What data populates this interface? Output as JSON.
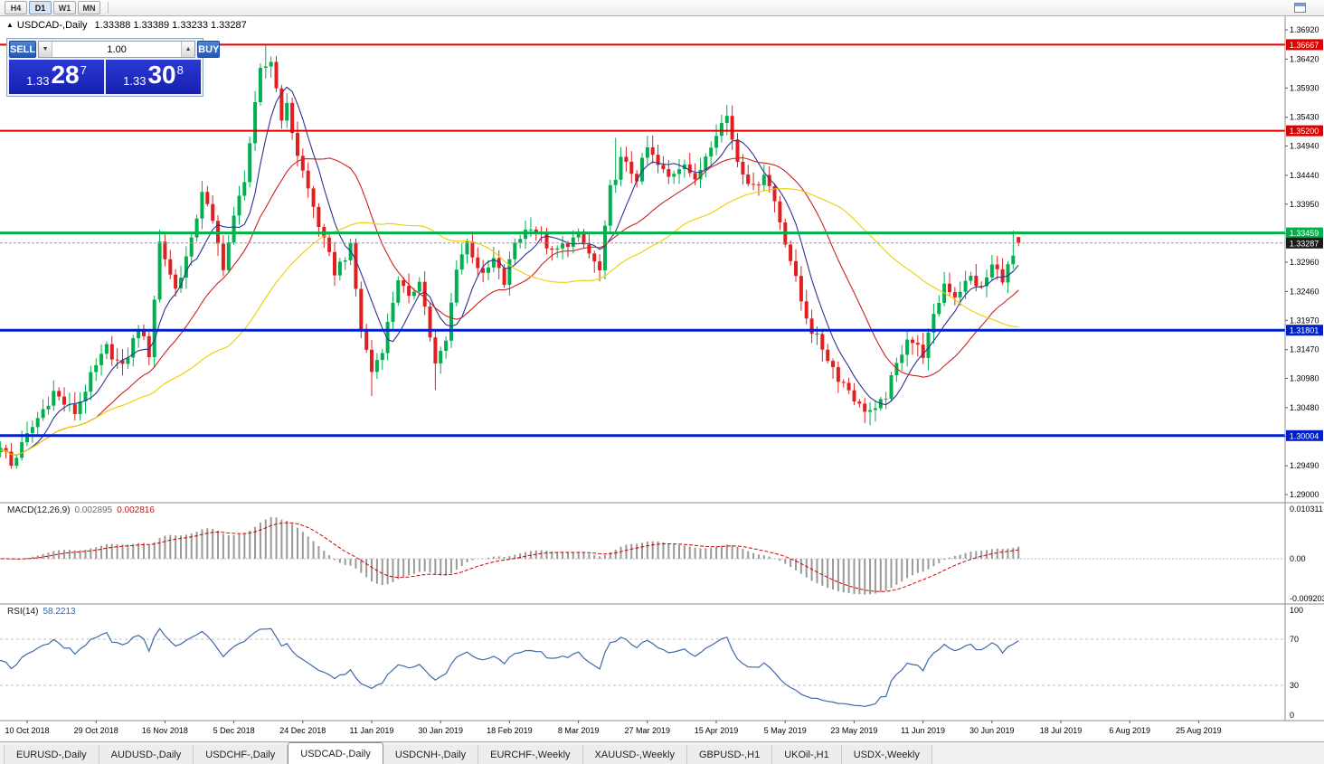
{
  "toolbar": {
    "timeframes": [
      {
        "label": "H4",
        "active": false
      },
      {
        "label": "D1",
        "active": true
      },
      {
        "label": "W1",
        "active": false
      },
      {
        "label": "MN",
        "active": false
      }
    ]
  },
  "chart": {
    "marker": "▲",
    "symbol_label": "USDCAD-,Daily",
    "ohlc": "1.33388 1.33389 1.33233 1.33287"
  },
  "trade_panel": {
    "sell_label": "SELL",
    "buy_label": "BUY",
    "volume": "1.00",
    "spin_up": "▲",
    "spin_down": "▼",
    "sell_price": {
      "prefix": "1.33",
      "big": "28",
      "sup": "7"
    },
    "buy_price": {
      "prefix": "1.33",
      "big": "30",
      "sup": "8"
    }
  },
  "chart_data": {
    "type": "candlestick",
    "symbol": "USDCAD",
    "timeframe": "Daily",
    "bars": 194,
    "current_bar": {
      "open": "1.33388",
      "high": "1.33389",
      "low": "1.33233",
      "close": "1.33287"
    },
    "up_color": "#00b050",
    "down_color": "#e02020",
    "price_anchors": [
      [
        0,
        1.2978
      ],
      [
        2,
        1.2972
      ],
      [
        3,
        1.295
      ],
      [
        6,
        1.3
      ],
      [
        9,
        1.3045
      ],
      [
        11,
        1.3075
      ],
      [
        13,
        1.3055
      ],
      [
        15,
        1.304
      ],
      [
        18,
        1.31
      ],
      [
        21,
        1.315
      ],
      [
        24,
        1.3115
      ],
      [
        27,
        1.3185
      ],
      [
        29,
        1.314
      ],
      [
        31,
        1.333
      ],
      [
        34,
        1.325
      ],
      [
        37,
        1.333
      ],
      [
        39,
        1.342
      ],
      [
        41,
        1.336
      ],
      [
        43,
        1.329
      ],
      [
        45,
        1.337
      ],
      [
        47,
        1.344
      ],
      [
        50,
        1.362
      ],
      [
        52,
        1.364
      ],
      [
        54,
        1.3545
      ],
      [
        55,
        1.356
      ],
      [
        57,
        1.348
      ],
      [
        59,
        1.342
      ],
      [
        62,
        1.333
      ],
      [
        64,
        1.328
      ],
      [
        67,
        1.332
      ],
      [
        69,
        1.318
      ],
      [
        71,
        1.311
      ],
      [
        73,
        1.315
      ],
      [
        76,
        1.327
      ],
      [
        78,
        1.323
      ],
      [
        80,
        1.327
      ],
      [
        83,
        1.312
      ],
      [
        85,
        1.316
      ],
      [
        87,
        1.329
      ],
      [
        89,
        1.333
      ],
      [
        92,
        1.327
      ],
      [
        94,
        1.33
      ],
      [
        96,
        1.326
      ],
      [
        98,
        1.333
      ],
      [
        101,
        1.336
      ],
      [
        103,
        1.334
      ],
      [
        105,
        1.331
      ],
      [
        108,
        1.333
      ],
      [
        110,
        1.334
      ],
      [
        112,
        1.331
      ],
      [
        114,
        1.328
      ],
      [
        116,
        1.342
      ],
      [
        118,
        1.347
      ],
      [
        121,
        1.344
      ],
      [
        123,
        1.349
      ],
      [
        125,
        1.346
      ],
      [
        127,
        1.344
      ],
      [
        130,
        1.347
      ],
      [
        132,
        1.343
      ],
      [
        134,
        1.348
      ],
      [
        136,
        1.352
      ],
      [
        138,
        1.3545
      ],
      [
        140,
        1.347
      ],
      [
        143,
        1.342
      ],
      [
        145,
        1.345
      ],
      [
        147,
        1.34
      ],
      [
        150,
        1.33
      ],
      [
        152,
        1.323
      ],
      [
        154,
        1.318
      ],
      [
        156,
        1.315
      ],
      [
        159,
        1.31
      ],
      [
        161,
        1.308
      ],
      [
        163,
        1.305
      ],
      [
        166,
        1.304
      ],
      [
        168,
        1.307
      ],
      [
        170,
        1.312
      ],
      [
        172,
        1.317
      ],
      [
        175,
        1.314
      ],
      [
        177,
        1.32
      ],
      [
        179,
        1.326
      ],
      [
        181,
        1.324
      ],
      [
        184,
        1.327
      ],
      [
        186,
        1.325
      ],
      [
        188,
        1.329
      ],
      [
        190,
        1.327
      ],
      [
        192,
        1.3305
      ],
      [
        193,
        1.3329
      ]
    ],
    "open_overrides": {
      "193": 1.33388
    },
    "close_overrides": {
      "193": 1.33287
    },
    "high_overrides": {
      "51": 1.3666,
      "117": 1.3508,
      "138": 1.3564,
      "192": 1.335,
      "193": 1.33389
    },
    "low_overrides": {
      "71": 1.3068,
      "83": 1.3078,
      "165": 1.3018,
      "193": 1.33233
    },
    "levels": [
      {
        "price": 1.36667,
        "label": "1.36667",
        "color": "#e00000",
        "width": 2
      },
      {
        "price": 1.352,
        "label": "1.35200",
        "color": "#e00000",
        "width": 2
      },
      {
        "price": 1.33459,
        "label": "1.33459",
        "color": "#00b14a",
        "width": 3
      },
      {
        "price": 1.31801,
        "label": "1.31801",
        "color": "#0020cc",
        "width": 3
      },
      {
        "price": 1.30004,
        "label": "1.30004",
        "color": "#0020cc",
        "width": 3
      }
    ],
    "current_price": {
      "value": 1.33287,
      "label": "1.33287",
      "bg": "#1a1a1a"
    },
    "price_ticks": [
      "1.36920",
      "1.36420",
      "1.35930",
      "1.35430",
      "1.34940",
      "1.34440",
      "1.33950",
      "1.33450",
      "1.32960",
      "1.32460",
      "1.31970",
      "1.31470",
      "1.30980",
      "1.30480",
      "1.29990",
      "1.29490",
      "1.29000"
    ],
    "date_labels": [
      "10 Oct 2018",
      "29 Oct 2018",
      "16 Nov 2018",
      "5 Dec 2018",
      "24 Dec 2018",
      "11 Jan 2019",
      "30 Jan 2019",
      "18 Feb 2019",
      "8 Mar 2019",
      "27 Mar 2019",
      "15 Apr 2019",
      "5 May 2019",
      "23 May 2019",
      "11 Jun 2019",
      "30 Jun 2019",
      "18 Jul 2019",
      "6 Aug 2019",
      "25 Aug 2019"
    ],
    "moving_averages": [
      {
        "period": 7,
        "color": "#2e3192"
      },
      {
        "period": 20,
        "color": "#cc2222"
      },
      {
        "period": 45,
        "color": "#eecd00"
      }
    ],
    "macd": {
      "label": "MACD(12,26,9)",
      "values": [
        "0.002895",
        "0.002816"
      ],
      "axis_labels": [
        "0.010311",
        "0.00",
        "-0.009203"
      ],
      "histogram_color": "#999999",
      "signal_color": "#cc0000"
    },
    "rsi": {
      "label": "RSI(14)",
      "value": "58.2213",
      "axis_labels": [
        "100",
        "70",
        "30",
        "0"
      ],
      "levels": [
        70,
        30
      ],
      "color": "#4169a8"
    }
  },
  "tabs": [
    {
      "label": "EURUSD-,Daily",
      "active": false
    },
    {
      "label": "AUDUSD-,Daily",
      "active": false
    },
    {
      "label": "USDCHF-,Daily",
      "active": false
    },
    {
      "label": "USDCAD-,Daily",
      "active": true
    },
    {
      "label": "USDCNH-,Daily",
      "active": false
    },
    {
      "label": "EURCHF-,Weekly",
      "active": false
    },
    {
      "label": "XAUUSD-,Weekly",
      "active": false
    },
    {
      "label": "GBPUSD-,H1",
      "active": false
    },
    {
      "label": "UKOil-,H1",
      "active": false
    },
    {
      "label": "USDX-,Weekly",
      "active": false
    }
  ]
}
